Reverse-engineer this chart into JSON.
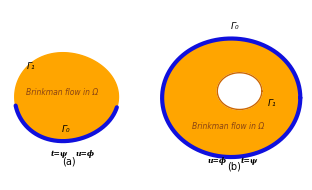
{
  "fig_width": 3.12,
  "fig_height": 1.9,
  "dpi": 100,
  "bg_color": "#ffffff",
  "orange_fill": "#FFA500",
  "blue_border": "#1010DD",
  "blue_linewidth_a": 3.0,
  "blue_linewidth_b": 3.0,
  "inner_linewidth": 1.2,
  "text_color": "#8B4513",
  "label_a": "(a)",
  "label_b": "(b)",
  "gamma1_a": "Γ₁",
  "gamma0_a": "Γ₀",
  "gamma0_b": "Γ₀",
  "gamma1_b": "Γ₁",
  "flow_text": "Brinkman flow in Ω",
  "eq_a_left": "t=ψ",
  "eq_a_right": "u=ϕ",
  "eq_b_left": "u=ϕ",
  "eq_b_right": "t=ψ"
}
